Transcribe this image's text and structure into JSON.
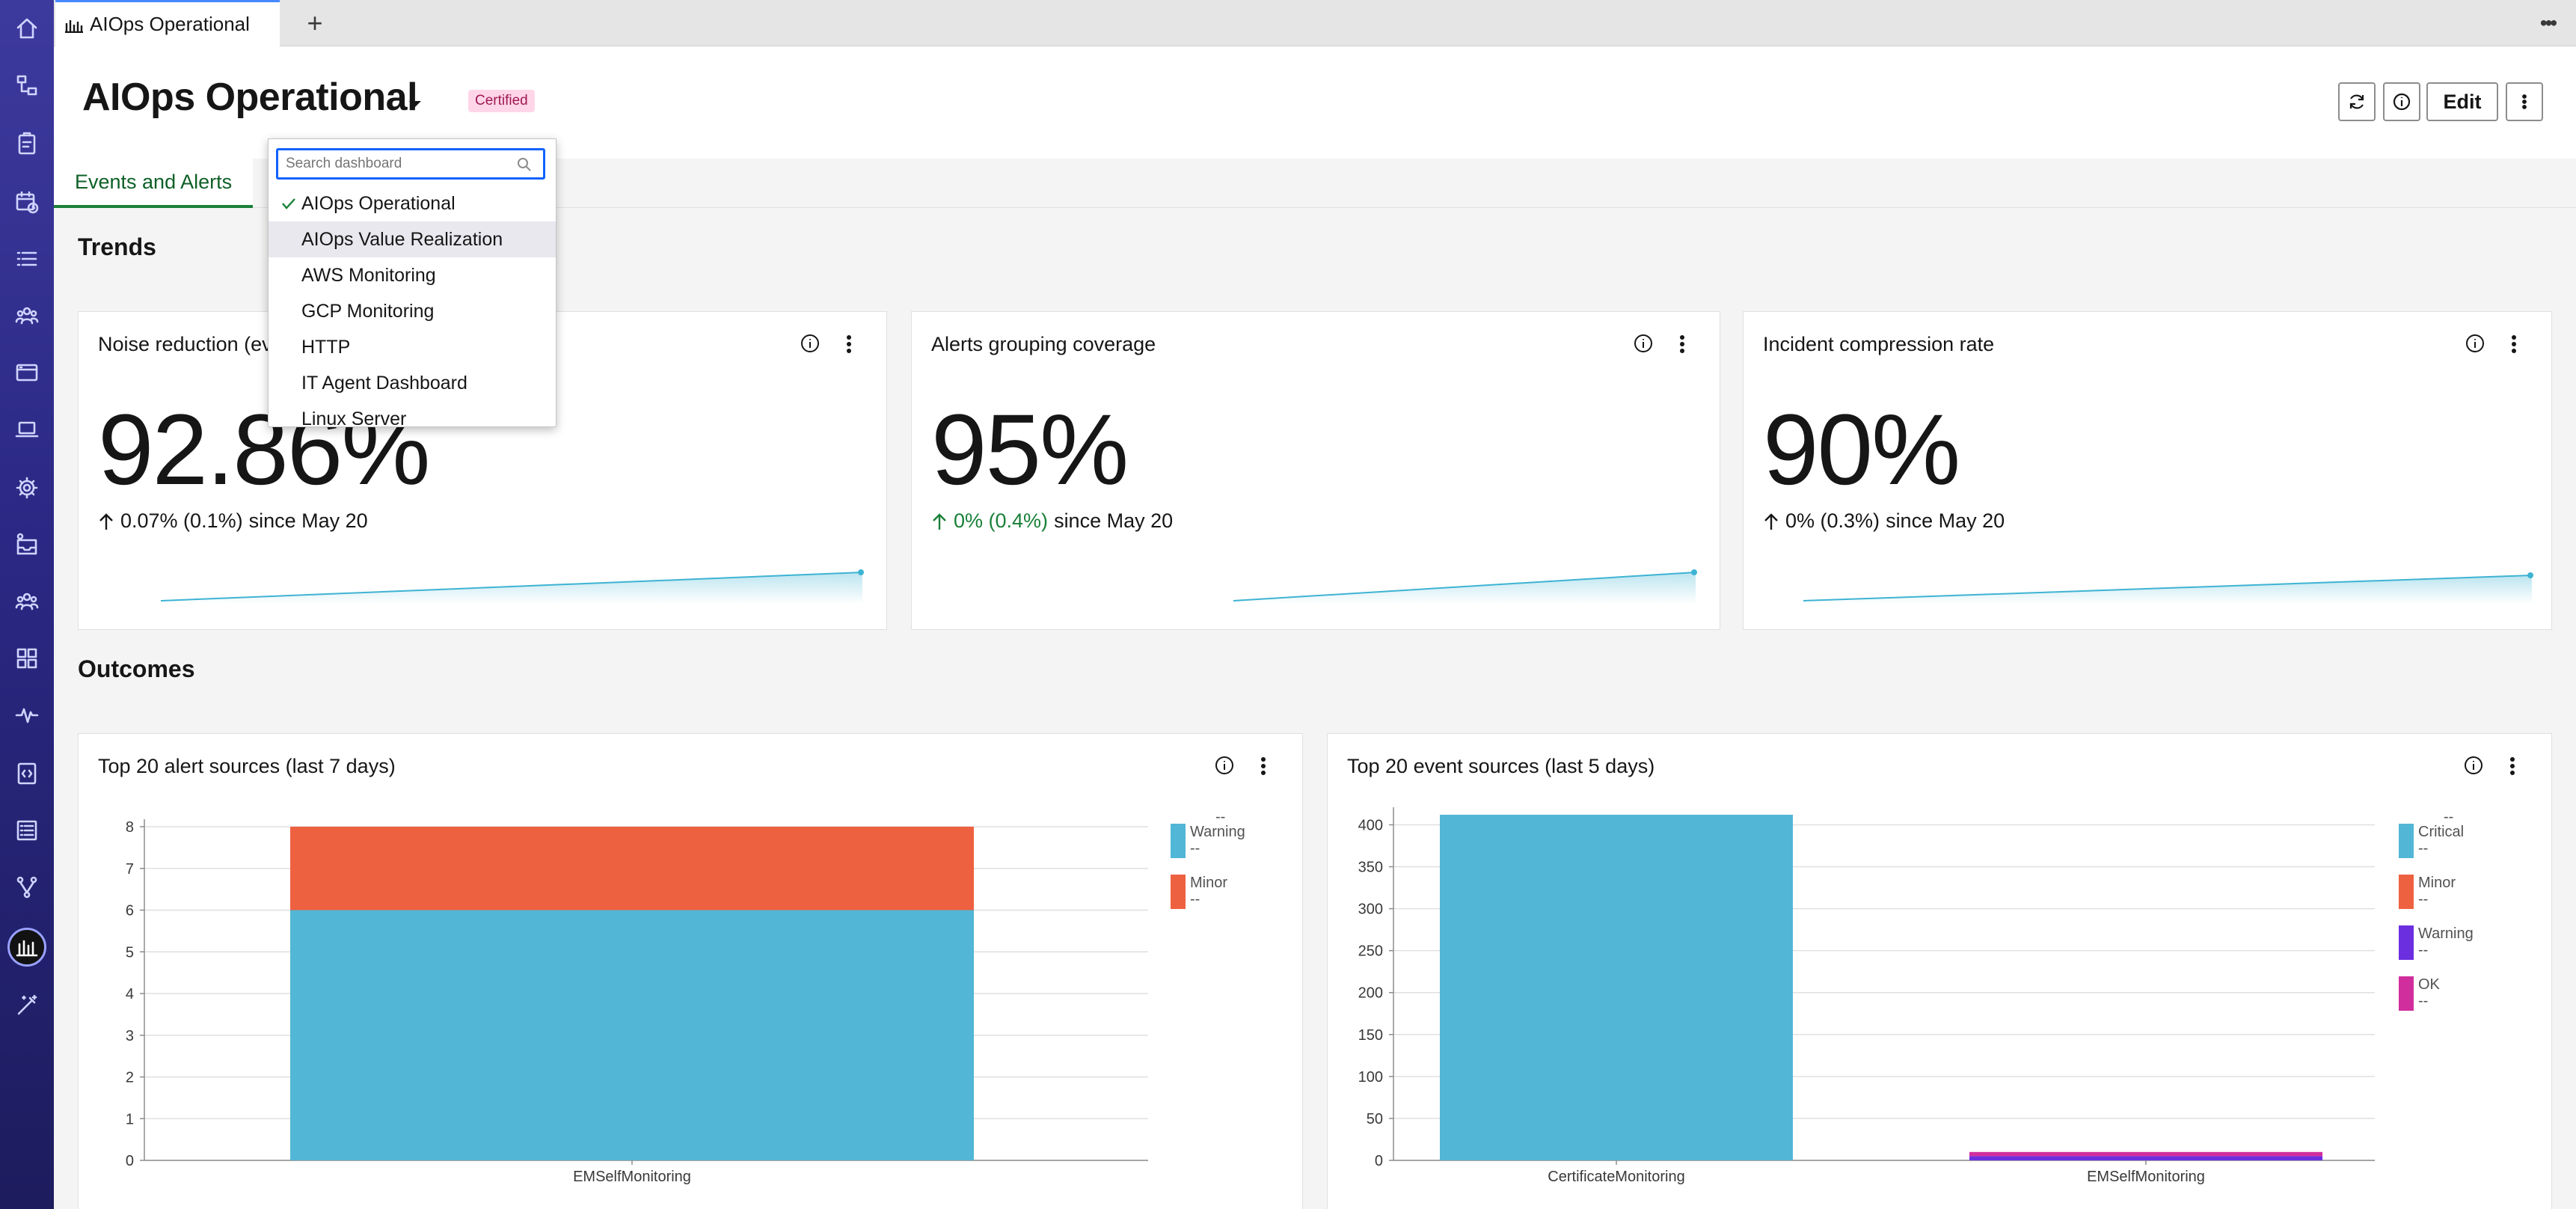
{
  "browser_tab": {
    "title": "AIOps Operational",
    "add_label": "+"
  },
  "header": {
    "title": "AIOps Operational",
    "badge": "Certified",
    "edit_label": "Edit"
  },
  "dropdown": {
    "search_placeholder": "Search dashboard",
    "items": [
      {
        "label": "AIOps Operational",
        "selected": true
      },
      {
        "label": "AIOps Value Realization",
        "hovered": true
      },
      {
        "label": "AWS Monitoring"
      },
      {
        "label": "GCP Monitoring"
      },
      {
        "label": "HTTP"
      },
      {
        "label": "IT Agent Dashboard"
      },
      {
        "label": "Linux Server"
      }
    ]
  },
  "subtabs": [
    {
      "label": "Events and Alerts",
      "selected": true
    }
  ],
  "sections": {
    "trends": "Trends",
    "outcomes": "Outcomes"
  },
  "kpis": [
    {
      "title": "Noise reduction (eve",
      "value": "92.86%",
      "change": "0.07% (0.1%)",
      "since": "since May 20",
      "trend": "up",
      "positive": false
    },
    {
      "title": "Alerts grouping coverage",
      "value": "95%",
      "change": "0% (0.4%)",
      "since": "since May 20",
      "trend": "up",
      "positive": true
    },
    {
      "title": "Incident compression rate",
      "value": "90%",
      "change": "0% (0.3%)",
      "since": "since May 20",
      "trend": "up",
      "positive": false
    }
  ],
  "colors": {
    "cyan": "#52b6d6",
    "orange": "#ee6140",
    "purple": "#6b2fe0",
    "magenta": "#d12e9d",
    "sidebar": "#2a2883",
    "accent_green": "#198038",
    "spark": "#3eb3d3"
  },
  "chart_data": [
    {
      "type": "bar",
      "title": "Top 20 alert sources (last 7 days)",
      "categories": [
        "EMSelfMonitoring"
      ],
      "stacked": true,
      "series": [
        {
          "name": "Warning",
          "values": [
            6
          ],
          "color": "#52b6d6"
        },
        {
          "name": "Minor",
          "values": [
            2
          ],
          "color": "#ee6140"
        }
      ],
      "legend_values": [
        "--",
        "--"
      ],
      "legend_header": "--",
      "ylim": [
        0,
        8
      ],
      "yticks": [
        0,
        1,
        2,
        3,
        4,
        5,
        6,
        7,
        8
      ],
      "grid": true,
      "legend_position": "right"
    },
    {
      "type": "bar",
      "title": "Top 20 event sources (last 5 days)",
      "categories": [
        "CertificateMonitoring",
        "EMSelfMonitoring"
      ],
      "stacked": true,
      "series": [
        {
          "name": "Critical",
          "values": [
            412,
            0
          ],
          "color": "#52b6d6"
        },
        {
          "name": "Minor",
          "values": [
            0,
            0
          ],
          "color": "#ee6140"
        },
        {
          "name": "Warning",
          "values": [
            0,
            5
          ],
          "color": "#6b2fe0"
        },
        {
          "name": "OK",
          "values": [
            0,
            5
          ],
          "color": "#d12e9d"
        }
      ],
      "legend_values": [
        "--",
        "--",
        "--",
        "--"
      ],
      "legend_header": "--",
      "ylim": [
        0,
        412
      ],
      "yticks": [
        0,
        50,
        100,
        150,
        200,
        250,
        300,
        350,
        400
      ],
      "grid": true,
      "legend_position": "right"
    }
  ]
}
